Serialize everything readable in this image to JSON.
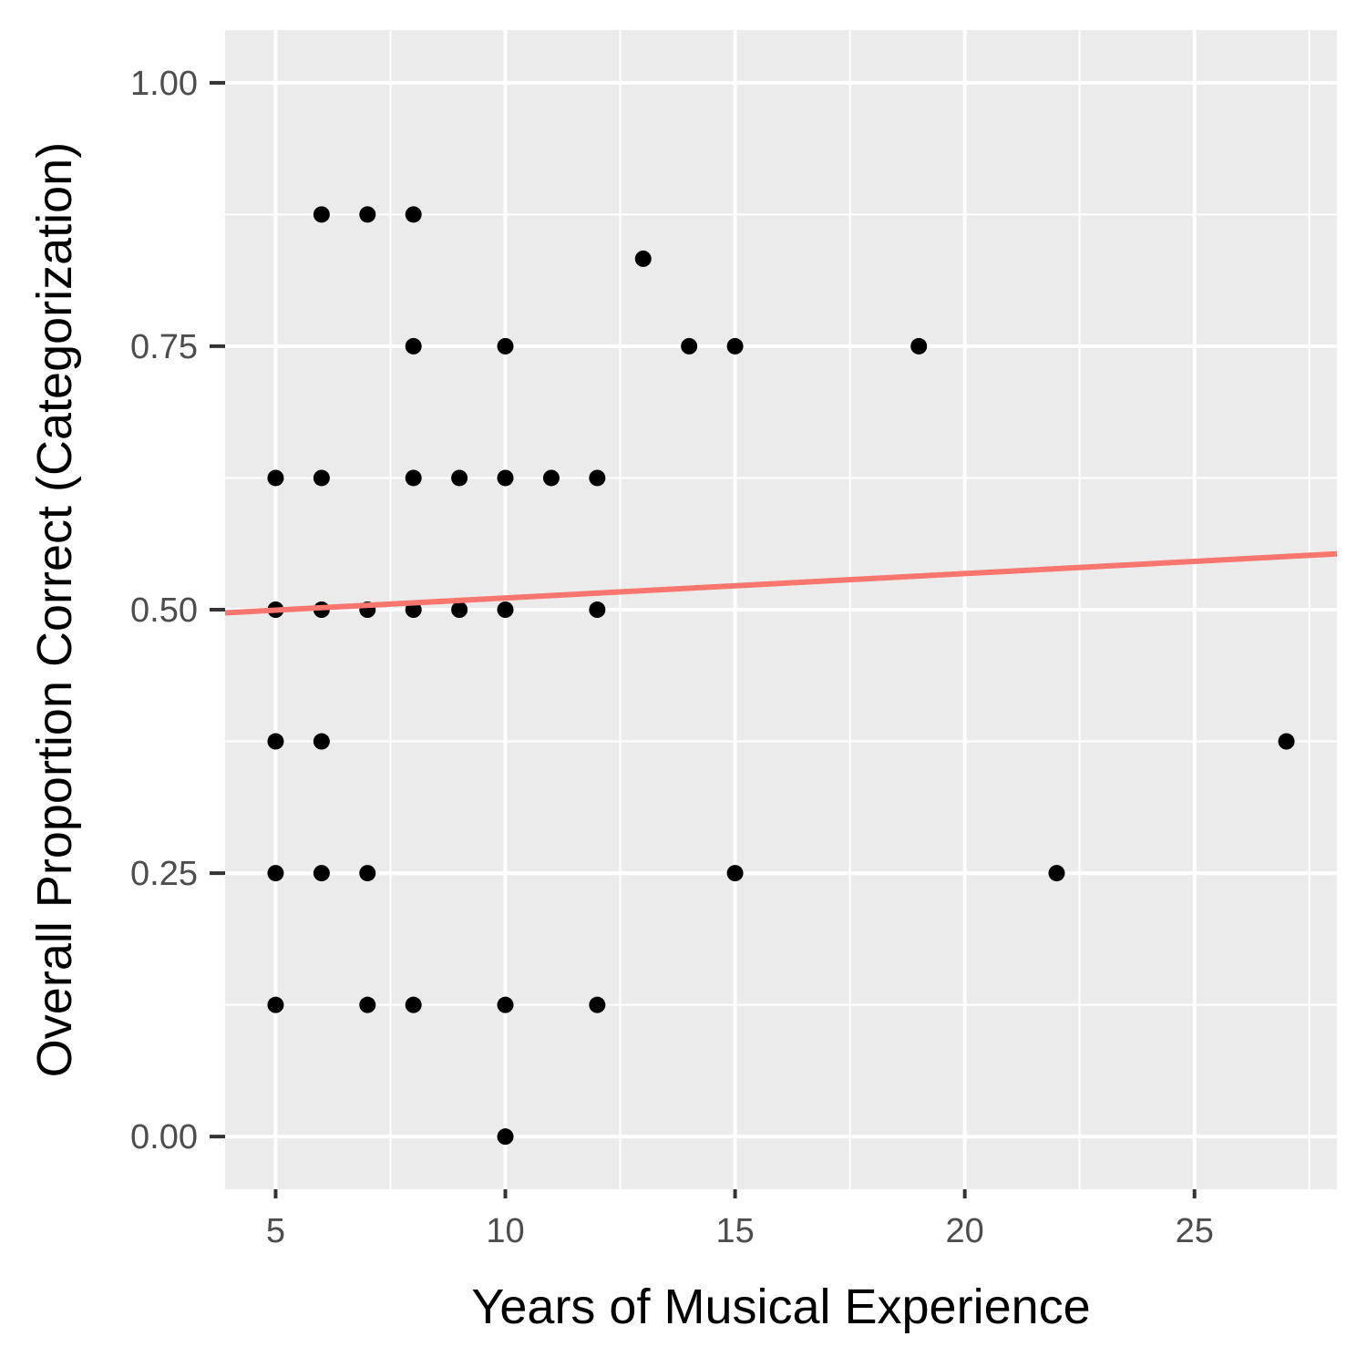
{
  "chart_data": {
    "type": "scatter",
    "xlabel": "Years of Musical Experience",
    "ylabel": "Overall Proportion Correct (Categorization)",
    "xlim": [
      3.9,
      28.1
    ],
    "ylim": [
      -0.05,
      1.05
    ],
    "x_ticks": [
      5,
      10,
      15,
      20,
      25
    ],
    "y_ticks": [
      0.0,
      0.25,
      0.5,
      0.75,
      1.0
    ],
    "x_tick_labels": [
      "5",
      "10",
      "15",
      "20",
      "25"
    ],
    "y_tick_labels": [
      "0.00",
      "0.25",
      "0.50",
      "0.75",
      "1.00"
    ],
    "grid": true,
    "points": [
      {
        "x": 6,
        "y": 0.875
      },
      {
        "x": 7,
        "y": 0.875
      },
      {
        "x": 8,
        "y": 0.875
      },
      {
        "x": 13,
        "y": 0.833
      },
      {
        "x": 8,
        "y": 0.75
      },
      {
        "x": 10,
        "y": 0.75
      },
      {
        "x": 14,
        "y": 0.75
      },
      {
        "x": 15,
        "y": 0.75
      },
      {
        "x": 19,
        "y": 0.75
      },
      {
        "x": 5,
        "y": 0.625
      },
      {
        "x": 6,
        "y": 0.625
      },
      {
        "x": 8,
        "y": 0.625
      },
      {
        "x": 9,
        "y": 0.625
      },
      {
        "x": 10,
        "y": 0.625
      },
      {
        "x": 11,
        "y": 0.625
      },
      {
        "x": 12,
        "y": 0.625
      },
      {
        "x": 5,
        "y": 0.5
      },
      {
        "x": 6,
        "y": 0.5
      },
      {
        "x": 7,
        "y": 0.5
      },
      {
        "x": 8,
        "y": 0.5
      },
      {
        "x": 9,
        "y": 0.5
      },
      {
        "x": 10,
        "y": 0.5
      },
      {
        "x": 12,
        "y": 0.5
      },
      {
        "x": 5,
        "y": 0.375
      },
      {
        "x": 6,
        "y": 0.375
      },
      {
        "x": 27,
        "y": 0.375
      },
      {
        "x": 5,
        "y": 0.25
      },
      {
        "x": 6,
        "y": 0.25
      },
      {
        "x": 7,
        "y": 0.25
      },
      {
        "x": 15,
        "y": 0.25
      },
      {
        "x": 22,
        "y": 0.25
      },
      {
        "x": 5,
        "y": 0.125
      },
      {
        "x": 7,
        "y": 0.125
      },
      {
        "x": 8,
        "y": 0.125
      },
      {
        "x": 10,
        "y": 0.125
      },
      {
        "x": 12,
        "y": 0.125
      },
      {
        "x": 10,
        "y": 0.0
      }
    ],
    "trend_line": {
      "x": [
        3.9,
        28.1
      ],
      "y": [
        0.497,
        0.553
      ],
      "color": "#f8766d"
    },
    "colors": {
      "panel": "#ebebeb",
      "grid": "#ffffff",
      "points": "#000000"
    }
  }
}
